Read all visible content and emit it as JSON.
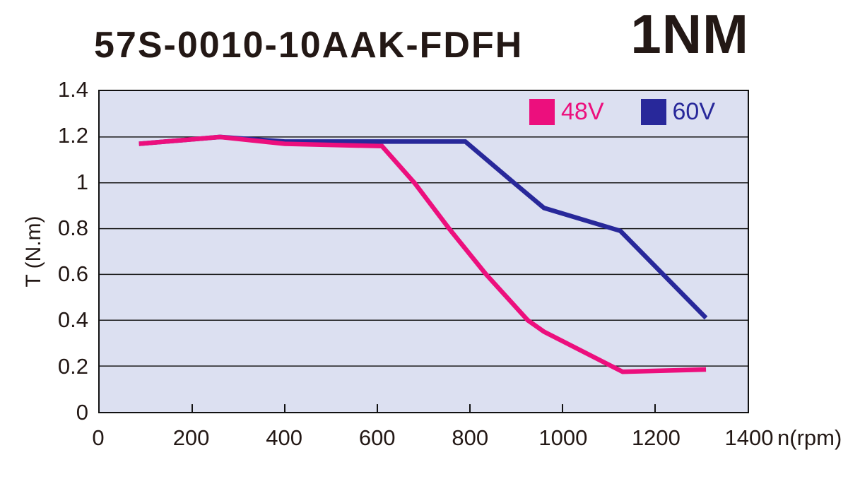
{
  "header": {
    "title": "57S-0010-10AAK-FDFH",
    "rating": "1NM"
  },
  "chart_data": {
    "type": "line",
    "title": "57S-0010-10AAK-FDFH",
    "subtitle": "1NM",
    "xlabel": "n(rpm)",
    "ylabel": "T (N.m)",
    "xlim": [
      0,
      1400
    ],
    "ylim": [
      0,
      1.4
    ],
    "xticks": [
      0,
      200,
      400,
      600,
      800,
      1000,
      1200,
      1400
    ],
    "xtick_labels": [
      "0",
      "200",
      "400",
      "600",
      "800",
      "1000",
      "1200",
      "1400"
    ],
    "yticks": [
      0,
      0.2,
      0.4,
      0.6,
      0.8,
      1.0,
      1.2,
      1.4
    ],
    "ytick_labels": [
      "0",
      "0.2",
      "0.4",
      "0.6",
      "0.8",
      "1",
      "1.2",
      "1.4"
    ],
    "grid": "horizontal-only",
    "legend_position": "top-right-inside",
    "colors": {
      "plot_bg": "#dce0f1",
      "grid": "#1a1a1a",
      "frame": "#111111",
      "text": "#231815"
    },
    "line_width": 6.5,
    "series": [
      {
        "name": "48V",
        "color": "#ec0f7d",
        "points": [
          [
            85,
            1.17
          ],
          [
            260,
            1.2
          ],
          [
            400,
            1.17
          ],
          [
            610,
            1.16
          ],
          [
            680,
            1.0
          ],
          [
            755,
            0.8
          ],
          [
            835,
            0.6
          ],
          [
            925,
            0.4
          ],
          [
            960,
            0.35
          ],
          [
            1130,
            0.175
          ],
          [
            1310,
            0.185
          ]
        ]
      },
      {
        "name": "60V",
        "color": "#28289a",
        "points": [
          [
            85,
            1.17
          ],
          [
            260,
            1.2
          ],
          [
            400,
            1.18
          ],
          [
            790,
            1.18
          ],
          [
            895,
            1.0
          ],
          [
            960,
            0.89
          ],
          [
            1125,
            0.79
          ],
          [
            1310,
            0.41
          ]
        ]
      }
    ]
  }
}
